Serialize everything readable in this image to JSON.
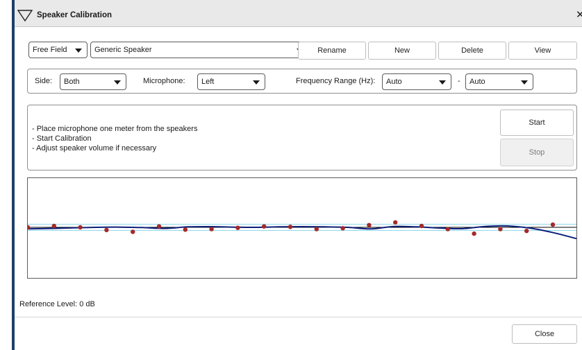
{
  "window": {
    "title": "Speaker Calibration"
  },
  "top_row": {
    "mode_select": "Free Field",
    "speaker_select": "Generic Speaker",
    "buttons": {
      "rename": "Rename",
      "new": "New",
      "delete": "Delete",
      "view": "View"
    }
  },
  "settings": {
    "side_label": "Side:",
    "side_value": "Both",
    "microphone_label": "Microphone:",
    "microphone_value": "Left",
    "freq_label": "Frequency Range (Hz):",
    "freq_from": "Auto",
    "freq_dash": "-",
    "freq_to": "Auto"
  },
  "instructions": {
    "lines": [
      "- Place microphone one meter from the speakers",
      "- Start Calibration",
      "- Adjust speaker volume if necessary"
    ],
    "start_label": "Start",
    "stop_label": "Stop"
  },
  "chart_data": {
    "type": "scatter",
    "reference_level_db": 0,
    "measured_points_db": [
      0,
      0.3,
      0,
      -0.6,
      -1.0,
      0.2,
      -0.5,
      -0.4,
      -0.1,
      0.2,
      0.1,
      -0.4,
      -0.2,
      0.5,
      1.1,
      0.3,
      -0.4,
      -1.4,
      -0.4,
      -0.8,
      0.6
    ],
    "fit_curve_db": [
      -0.35,
      -0.25,
      -0.1,
      0,
      0.05,
      -0.05,
      -0.25,
      0.1,
      0.15,
      0.05,
      0.0,
      0.1,
      0.15,
      0.1,
      0.0,
      -0.35,
      0.2,
      0.1,
      -0.15,
      -0.3,
      0.2,
      0.3,
      -0.2,
      -1.2,
      -2.5
    ],
    "y_range_db": [
      -6,
      6
    ],
    "tolerance_db": 0.7,
    "colors": {
      "points": "#a52a2a",
      "curve": "#0d1f7a",
      "tolerance": "#8ed8ea",
      "reference": "#000000"
    }
  },
  "footer": {
    "reference_text": "Reference Level: 0 dB",
    "close_label": "Close"
  }
}
